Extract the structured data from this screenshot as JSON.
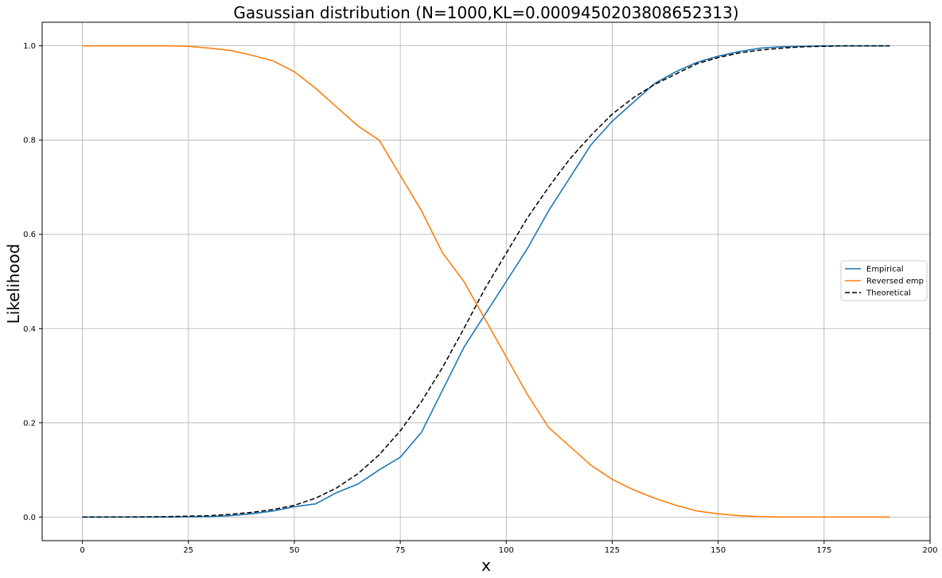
{
  "chart_data": {
    "type": "line",
    "title": "Gasussian distribution (N=1000,KL=0.0009450203808652313)",
    "xlabel": "x",
    "ylabel": "Likelihood",
    "xlim": [
      -9.5,
      200
    ],
    "ylim": [
      -0.05,
      1.05
    ],
    "x_ticks": [
      0,
      25,
      50,
      75,
      100,
      125,
      150,
      175,
      200
    ],
    "y_ticks": [
      0.0,
      0.2,
      0.4,
      0.6,
      0.8,
      1.0
    ],
    "x_tick_labels": [
      "0",
      "25",
      "50",
      "75",
      "100",
      "125",
      "150",
      "175",
      "200"
    ],
    "y_tick_labels": [
      "0.0",
      "0.2",
      "0.4",
      "0.6",
      "0.8",
      "1.0"
    ],
    "grid": true,
    "legend_position": "center-right",
    "series": [
      {
        "name": "Empirical",
        "color": "#1f77b4",
        "style": "solid",
        "x": [
          0,
          20,
          30,
          35,
          40,
          45,
          50,
          55,
          60,
          65,
          70,
          75,
          80,
          85,
          90,
          95,
          100,
          105,
          110,
          115,
          120,
          125,
          130,
          135,
          140,
          145,
          150,
          155,
          160,
          165,
          170,
          175,
          180,
          185,
          190.5
        ],
        "y": [
          0.0,
          0.0,
          0.001,
          0.003,
          0.007,
          0.013,
          0.022,
          0.028,
          0.052,
          0.07,
          0.1,
          0.127,
          0.18,
          0.27,
          0.36,
          0.43,
          0.5,
          0.57,
          0.65,
          0.72,
          0.79,
          0.84,
          0.88,
          0.92,
          0.945,
          0.965,
          0.978,
          0.988,
          0.995,
          0.998,
          0.999,
          1.0,
          1.0,
          1.0,
          1.0
        ]
      },
      {
        "name": "Reversed emp",
        "color": "#ff7f0e",
        "style": "solid",
        "x": [
          0,
          20,
          25,
          30,
          35,
          40,
          45,
          50,
          55,
          60,
          65,
          70,
          75,
          80,
          85,
          90,
          95,
          100,
          105,
          110,
          115,
          120,
          125,
          130,
          135,
          140,
          145,
          150,
          155,
          160,
          165,
          170,
          175,
          180,
          185,
          190.5
        ],
        "y": [
          1.0,
          1.0,
          0.999,
          0.995,
          0.99,
          0.98,
          0.968,
          0.945,
          0.91,
          0.87,
          0.83,
          0.8,
          0.725,
          0.65,
          0.56,
          0.5,
          0.42,
          0.34,
          0.26,
          0.19,
          0.15,
          0.11,
          0.08,
          0.058,
          0.04,
          0.025,
          0.013,
          0.007,
          0.003,
          0.001,
          0.0,
          0.0,
          0.0,
          0.0,
          0.0,
          0.0
        ]
      },
      {
        "name": "Theoretical",
        "color": "#000000",
        "style": "dashed",
        "x": [
          0,
          10,
          20,
          30,
          35,
          40,
          45,
          50,
          55,
          60,
          65,
          70,
          75,
          80,
          85,
          90,
          95,
          100,
          105,
          110,
          115,
          120,
          125,
          130,
          135,
          140,
          145,
          150,
          155,
          160,
          165,
          170,
          175,
          180,
          185,
          190.5
        ],
        "y": [
          0.0,
          0.0002,
          0.0009,
          0.003,
          0.006,
          0.01,
          0.016,
          0.025,
          0.04,
          0.062,
          0.092,
          0.132,
          0.183,
          0.245,
          0.318,
          0.4,
          0.485,
          0.56,
          0.635,
          0.7,
          0.76,
          0.81,
          0.855,
          0.89,
          0.918,
          0.94,
          0.962,
          0.975,
          0.985,
          0.991,
          0.995,
          0.998,
          0.999,
          1.0,
          1.0,
          1.0
        ]
      }
    ]
  }
}
